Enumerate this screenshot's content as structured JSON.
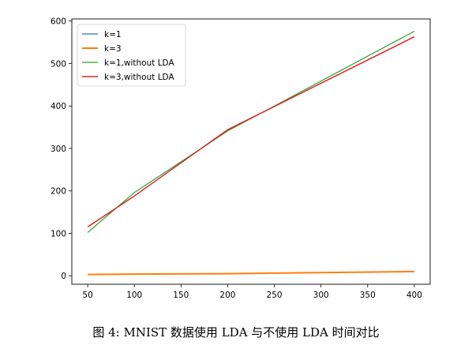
{
  "caption": "图 4: MNIST 数据使用 LDA 与不使用 LDA 时间对比",
  "chart_data": {
    "type": "line",
    "title": "",
    "xlabel": "",
    "ylabel": "",
    "xlim": [
      33,
      417
    ],
    "ylim": [
      -20,
      605
    ],
    "xticks": [
      50,
      100,
      150,
      200,
      250,
      300,
      350,
      400
    ],
    "yticks": [
      0,
      100,
      200,
      300,
      400,
      500,
      600
    ],
    "grid": false,
    "legend_position": "upper-left",
    "x": [
      50,
      100,
      200,
      400
    ],
    "series": [
      {
        "name": "k=1",
        "color": "#1f77b4",
        "linewidth": 1.2,
        "values": [
          3,
          4,
          5,
          10
        ]
      },
      {
        "name": "k=3",
        "color": "#ff7f0e",
        "linewidth": 2.0,
        "values": [
          3,
          4,
          5,
          10
        ]
      },
      {
        "name": "k=1,without LDA",
        "color": "#2ca02c",
        "linewidth": 1.2,
        "values": [
          102,
          196,
          341,
          576
        ]
      },
      {
        "name": "k=3,without LDA",
        "color": "#d62728",
        "linewidth": 1.5,
        "values": [
          115,
          188,
          344,
          563
        ]
      }
    ]
  }
}
